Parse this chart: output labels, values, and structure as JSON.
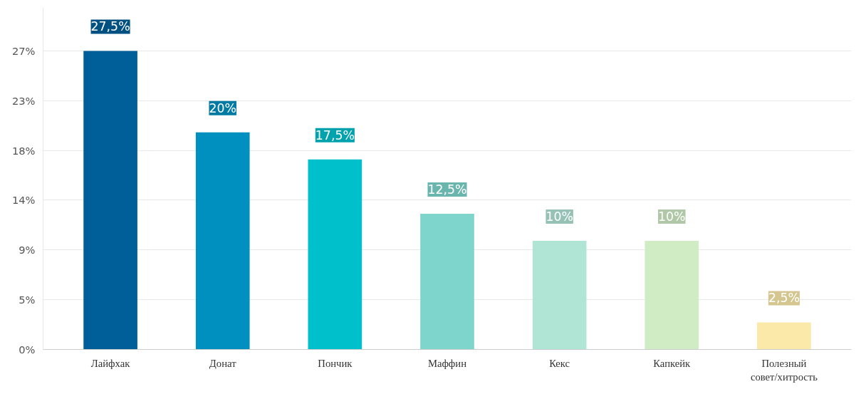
{
  "chart_data": {
    "type": "bar",
    "categories": [
      "Лайфхак",
      "Донат",
      "Пончик",
      "Маффин",
      "Кекс",
      "Капкейк",
      "Полезный совет/хитрость"
    ],
    "values": [
      27.5,
      20,
      17.5,
      12.5,
      10,
      10,
      2.5
    ],
    "colors": [
      "#005f99",
      "#0090bf",
      "#00c0cc",
      "#7dd5cc",
      "#b0e5d5",
      "#d0ecc5",
      "#fbe9a9"
    ],
    "value_labels": [
      "27,5%",
      "20%",
      "17,5%",
      "12,5%",
      "10%",
      "10%",
      "2,5%"
    ],
    "ylim": [
      0,
      31.5
    ],
    "yticks": [
      {
        "value": 0,
        "label": "0%"
      },
      {
        "value": 4.583,
        "label": "5%"
      },
      {
        "value": 9.167,
        "label": "9%"
      },
      {
        "value": 13.75,
        "label": "14%"
      },
      {
        "value": 18.333,
        "label": "18%"
      },
      {
        "value": 22.917,
        "label": "23%"
      },
      {
        "value": 27.5,
        "label": "27%"
      }
    ],
    "grid": "y"
  }
}
